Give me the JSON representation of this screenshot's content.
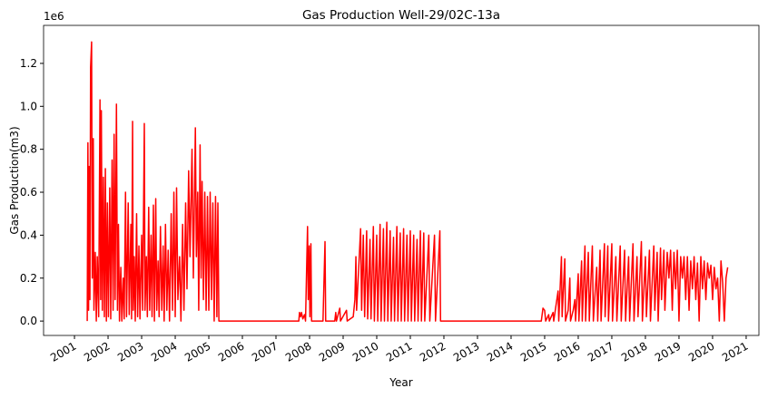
{
  "chart_data": {
    "type": "line",
    "title": "Gas Production Well-29/02C-13a",
    "x_label": "Year",
    "y_label": "Gas Production(m3)",
    "y_offset_label": "1e6",
    "color": "#ff0000",
    "xlim": [
      2000.08,
      2021.38
    ],
    "xticks": [
      2001,
      2002,
      2003,
      2004,
      2005,
      2006,
      2007,
      2008,
      2009,
      2010,
      2011,
      2012,
      2013,
      2014,
      2015,
      2016,
      2017,
      2018,
      2019,
      2020,
      2021
    ],
    "ylim": [
      -0.067,
      1.377
    ],
    "yticks": [
      {
        "value": 0,
        "label": "0.0"
      },
      0.2,
      0.4,
      0.6,
      0.8,
      {
        "value": 1,
        "label": "1.0"
      },
      1.2
    ],
    "x": [
      2001.38,
      2001.4,
      2001.42,
      2001.44,
      2001.46,
      2001.48,
      2001.51,
      2001.53,
      2001.56,
      2001.58,
      2001.62,
      2001.65,
      2001.68,
      2001.72,
      2001.76,
      2001.78,
      2001.8,
      2001.83,
      2001.86,
      2001.89,
      2001.92,
      2001.95,
      2001.98,
      2002.01,
      2002.05,
      2002.08,
      2002.12,
      2002.15,
      2002.18,
      2002.21,
      2002.25,
      2002.28,
      2002.31,
      2002.34,
      2002.38,
      2002.41,
      2002.45,
      2002.48,
      2002.52,
      2002.55,
      2002.6,
      2002.63,
      2002.68,
      2002.7,
      2002.73,
      2002.75,
      2002.78,
      2002.81,
      2002.85,
      2002.88,
      2002.92,
      2002.95,
      2003.0,
      2003.03,
      2003.08,
      2003.1,
      2003.14,
      2003.17,
      2003.21,
      2003.24,
      2003.28,
      2003.31,
      2003.35,
      2003.38,
      2003.42,
      2003.45,
      2003.49,
      2003.52,
      2003.56,
      2003.6,
      2003.64,
      2003.67,
      2003.71,
      2003.75,
      2003.79,
      2003.83,
      2003.88,
      2003.92,
      2003.96,
      2004.0,
      2004.04,
      2004.08,
      2004.13,
      2004.17,
      2004.22,
      2004.26,
      2004.31,
      2004.35,
      2004.4,
      2004.44,
      2004.5,
      2004.54,
      2004.6,
      2004.63,
      2004.67,
      2004.7,
      2004.74,
      2004.77,
      2004.8,
      2004.84,
      2004.88,
      2004.92,
      2004.96,
      2005.0,
      2005.04,
      2005.08,
      2005.12,
      2005.16,
      2005.2,
      2005.24,
      2005.27,
      2005.3,
      2007.68,
      2007.7,
      2007.73,
      2007.76,
      2007.8,
      2007.85,
      2007.88,
      2007.92,
      2007.94,
      2007.96,
      2007.99,
      2008.01,
      2008.04,
      2008.06,
      2008.4,
      2008.46,
      2008.48,
      2008.75,
      2008.78,
      2008.8,
      2008.9,
      2008.92,
      2009.1,
      2009.12,
      2009.3,
      2009.35,
      2009.38,
      2009.4,
      2009.48,
      2009.52,
      2009.55,
      2009.6,
      2009.64,
      2009.7,
      2009.73,
      2009.8,
      2009.83,
      2009.9,
      2009.93,
      2010.0,
      2010.03,
      2010.1,
      2010.13,
      2010.2,
      2010.23,
      2010.3,
      2010.33,
      2010.4,
      2010.43,
      2010.5,
      2010.53,
      2010.6,
      2010.63,
      2010.7,
      2010.73,
      2010.8,
      2010.83,
      2010.9,
      2010.93,
      2011.0,
      2011.03,
      2011.1,
      2011.13,
      2011.2,
      2011.23,
      2011.3,
      2011.33,
      2011.4,
      2011.43,
      2011.55,
      2011.58,
      2011.72,
      2011.75,
      2011.88,
      2011.9,
      2014.9,
      2014.95,
      2015.0,
      2015.03,
      2015.12,
      2015.14,
      2015.25,
      2015.27,
      2015.4,
      2015.42,
      2015.5,
      2015.52,
      2015.6,
      2015.62,
      2015.7,
      2015.75,
      2015.77,
      2015.85,
      2015.9,
      2015.92,
      2016.0,
      2016.02,
      2016.1,
      2016.12,
      2016.2,
      2016.22,
      2016.3,
      2016.33,
      2016.42,
      2016.45,
      2016.55,
      2016.58,
      2016.65,
      2016.68,
      2016.78,
      2016.8,
      2016.88,
      2016.9,
      2017.0,
      2017.02,
      2017.12,
      2017.15,
      2017.25,
      2017.28,
      2017.38,
      2017.41,
      2017.5,
      2017.53,
      2017.63,
      2017.66,
      2017.75,
      2017.78,
      2017.88,
      2017.91,
      2018.0,
      2018.03,
      2018.12,
      2018.15,
      2018.25,
      2018.28,
      2018.35,
      2018.38,
      2018.45,
      2018.48,
      2018.55,
      2018.58,
      2018.65,
      2018.7,
      2018.75,
      2018.8,
      2018.85,
      2018.9,
      2018.95,
      2019.0,
      2019.05,
      2019.1,
      2019.15,
      2019.2,
      2019.25,
      2019.3,
      2019.35,
      2019.4,
      2019.45,
      2019.5,
      2019.55,
      2019.6,
      2019.65,
      2019.7,
      2019.75,
      2019.8,
      2019.85,
      2019.9,
      2019.95,
      2020.0,
      2020.05,
      2020.1,
      2020.15,
      2020.2,
      2020.25,
      2020.3,
      2020.35,
      2020.4,
      2020.45
    ],
    "values": [
      0,
      0.83,
      0.05,
      0.72,
      0.1,
      1.18,
      1.3,
      0.2,
      0.85,
      0.05,
      0.32,
      0,
      0.3,
      0.02,
      1.03,
      0.1,
      0.98,
      0.05,
      0.67,
      0.02,
      0.71,
      0,
      0.55,
      0.02,
      0.62,
      0.01,
      0.75,
      0.05,
      0.87,
      0.1,
      1.01,
      0.05,
      0.45,
      0,
      0.25,
      0,
      0.2,
      0.01,
      0.6,
      0.02,
      0.55,
      0.03,
      0.45,
      0.01,
      0.93,
      0.05,
      0.3,
      0,
      0.5,
      0.02,
      0.35,
      0.01,
      0.4,
      0.05,
      0.92,
      0.05,
      0.3,
      0.02,
      0.53,
      0.05,
      0.4,
      0.02,
      0.54,
      0,
      0.57,
      0.05,
      0.28,
      0.02,
      0.44,
      0.05,
      0.35,
      0,
      0.45,
      0.05,
      0.33,
      0,
      0.5,
      0.05,
      0.6,
      0.02,
      0.62,
      0.1,
      0.3,
      0,
      0.45,
      0.05,
      0.55,
      0.15,
      0.7,
      0.3,
      0.8,
      0.2,
      0.9,
      0.3,
      0.6,
      0.05,
      0.82,
      0.2,
      0.65,
      0.1,
      0.6,
      0.05,
      0.58,
      0.05,
      0.6,
      0.1,
      0.55,
      0,
      0.58,
      0.02,
      0.55,
      0,
      0,
      0.04,
      0.02,
      0.04,
      0.01,
      0.03,
      0,
      0.3,
      0.44,
      0.1,
      0.35,
      0.02,
      0.36,
      0,
      0,
      0.37,
      0,
      0,
      0.04,
      0,
      0.06,
      0,
      0.05,
      0,
      0.02,
      0.1,
      0.3,
      0.05,
      0.3,
      0.43,
      0.05,
      0.4,
      0.02,
      0.42,
      0.01,
      0.38,
      0.01,
      0.44,
      0,
      0.4,
      0,
      0.45,
      0,
      0.43,
      0,
      0.46,
      0,
      0.42,
      0,
      0.39,
      0,
      0.44,
      0,
      0.41,
      0,
      0.43,
      0,
      0.4,
      0,
      0.42,
      0,
      0.4,
      0,
      0.38,
      0,
      0.42,
      0,
      0.41,
      0,
      0.4,
      0,
      0.4,
      0,
      0.42,
      0,
      0,
      0.06,
      0.05,
      0,
      0.03,
      0,
      0.04,
      0,
      0.14,
      0,
      0.3,
      0.02,
      0.29,
      0,
      0.05,
      0.2,
      0,
      0.05,
      0.1,
      0,
      0.22,
      0,
      0.28,
      0,
      0.35,
      0,
      0.32,
      0,
      0.35,
      0,
      0.25,
      0,
      0.33,
      0,
      0.36,
      0.02,
      0.35,
      0,
      0.36,
      0,
      0.3,
      0,
      0.35,
      0,
      0.33,
      0,
      0.3,
      0,
      0.36,
      0,
      0.3,
      0.02,
      0.37,
      0,
      0.3,
      0.02,
      0.33,
      0,
      0.35,
      0.05,
      0.32,
      0,
      0.34,
      0.1,
      0.33,
      0.05,
      0.32,
      0.2,
      0.33,
      0.05,
      0.32,
      0.15,
      0.33,
      0,
      0.3,
      0.2,
      0.3,
      0.1,
      0.3,
      0.05,
      0.28,
      0.15,
      0.3,
      0.1,
      0.27,
      0,
      0.3,
      0.15,
      0.28,
      0.1,
      0.27,
      0.2,
      0.26,
      0.1,
      0.25,
      0.15,
      0.2,
      0,
      0.28,
      0.18,
      0,
      0.2,
      0.25
    ]
  }
}
